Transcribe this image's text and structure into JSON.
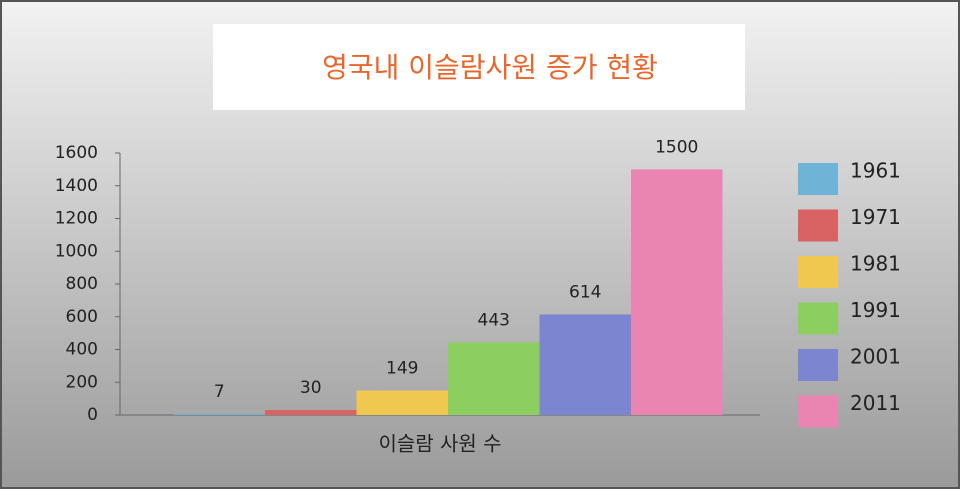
{
  "chart_data": {
    "type": "bar",
    "title": "영국내 이슬람사원 증가 현황",
    "categories": [
      "이슬람 사원 수"
    ],
    "series": [
      {
        "name": "1961",
        "color": "#6fb3d6",
        "values": [
          7
        ]
      },
      {
        "name": "1971",
        "color": "#d96262",
        "values": [
          30
        ]
      },
      {
        "name": "1981",
        "color": "#f0c850",
        "values": [
          149
        ]
      },
      {
        "name": "1991",
        "color": "#8ccf60",
        "values": [
          443
        ]
      },
      {
        "name": "2001",
        "color": "#7b85d0",
        "values": [
          614
        ]
      },
      {
        "name": "2011",
        "color": "#e985b0",
        "values": [
          1500
        ]
      }
    ],
    "ylim": [
      0,
      1600
    ],
    "yticks": [
      0,
      200,
      400,
      600,
      800,
      1000,
      1200,
      1400,
      1600
    ],
    "grid": false,
    "legend": "right"
  }
}
